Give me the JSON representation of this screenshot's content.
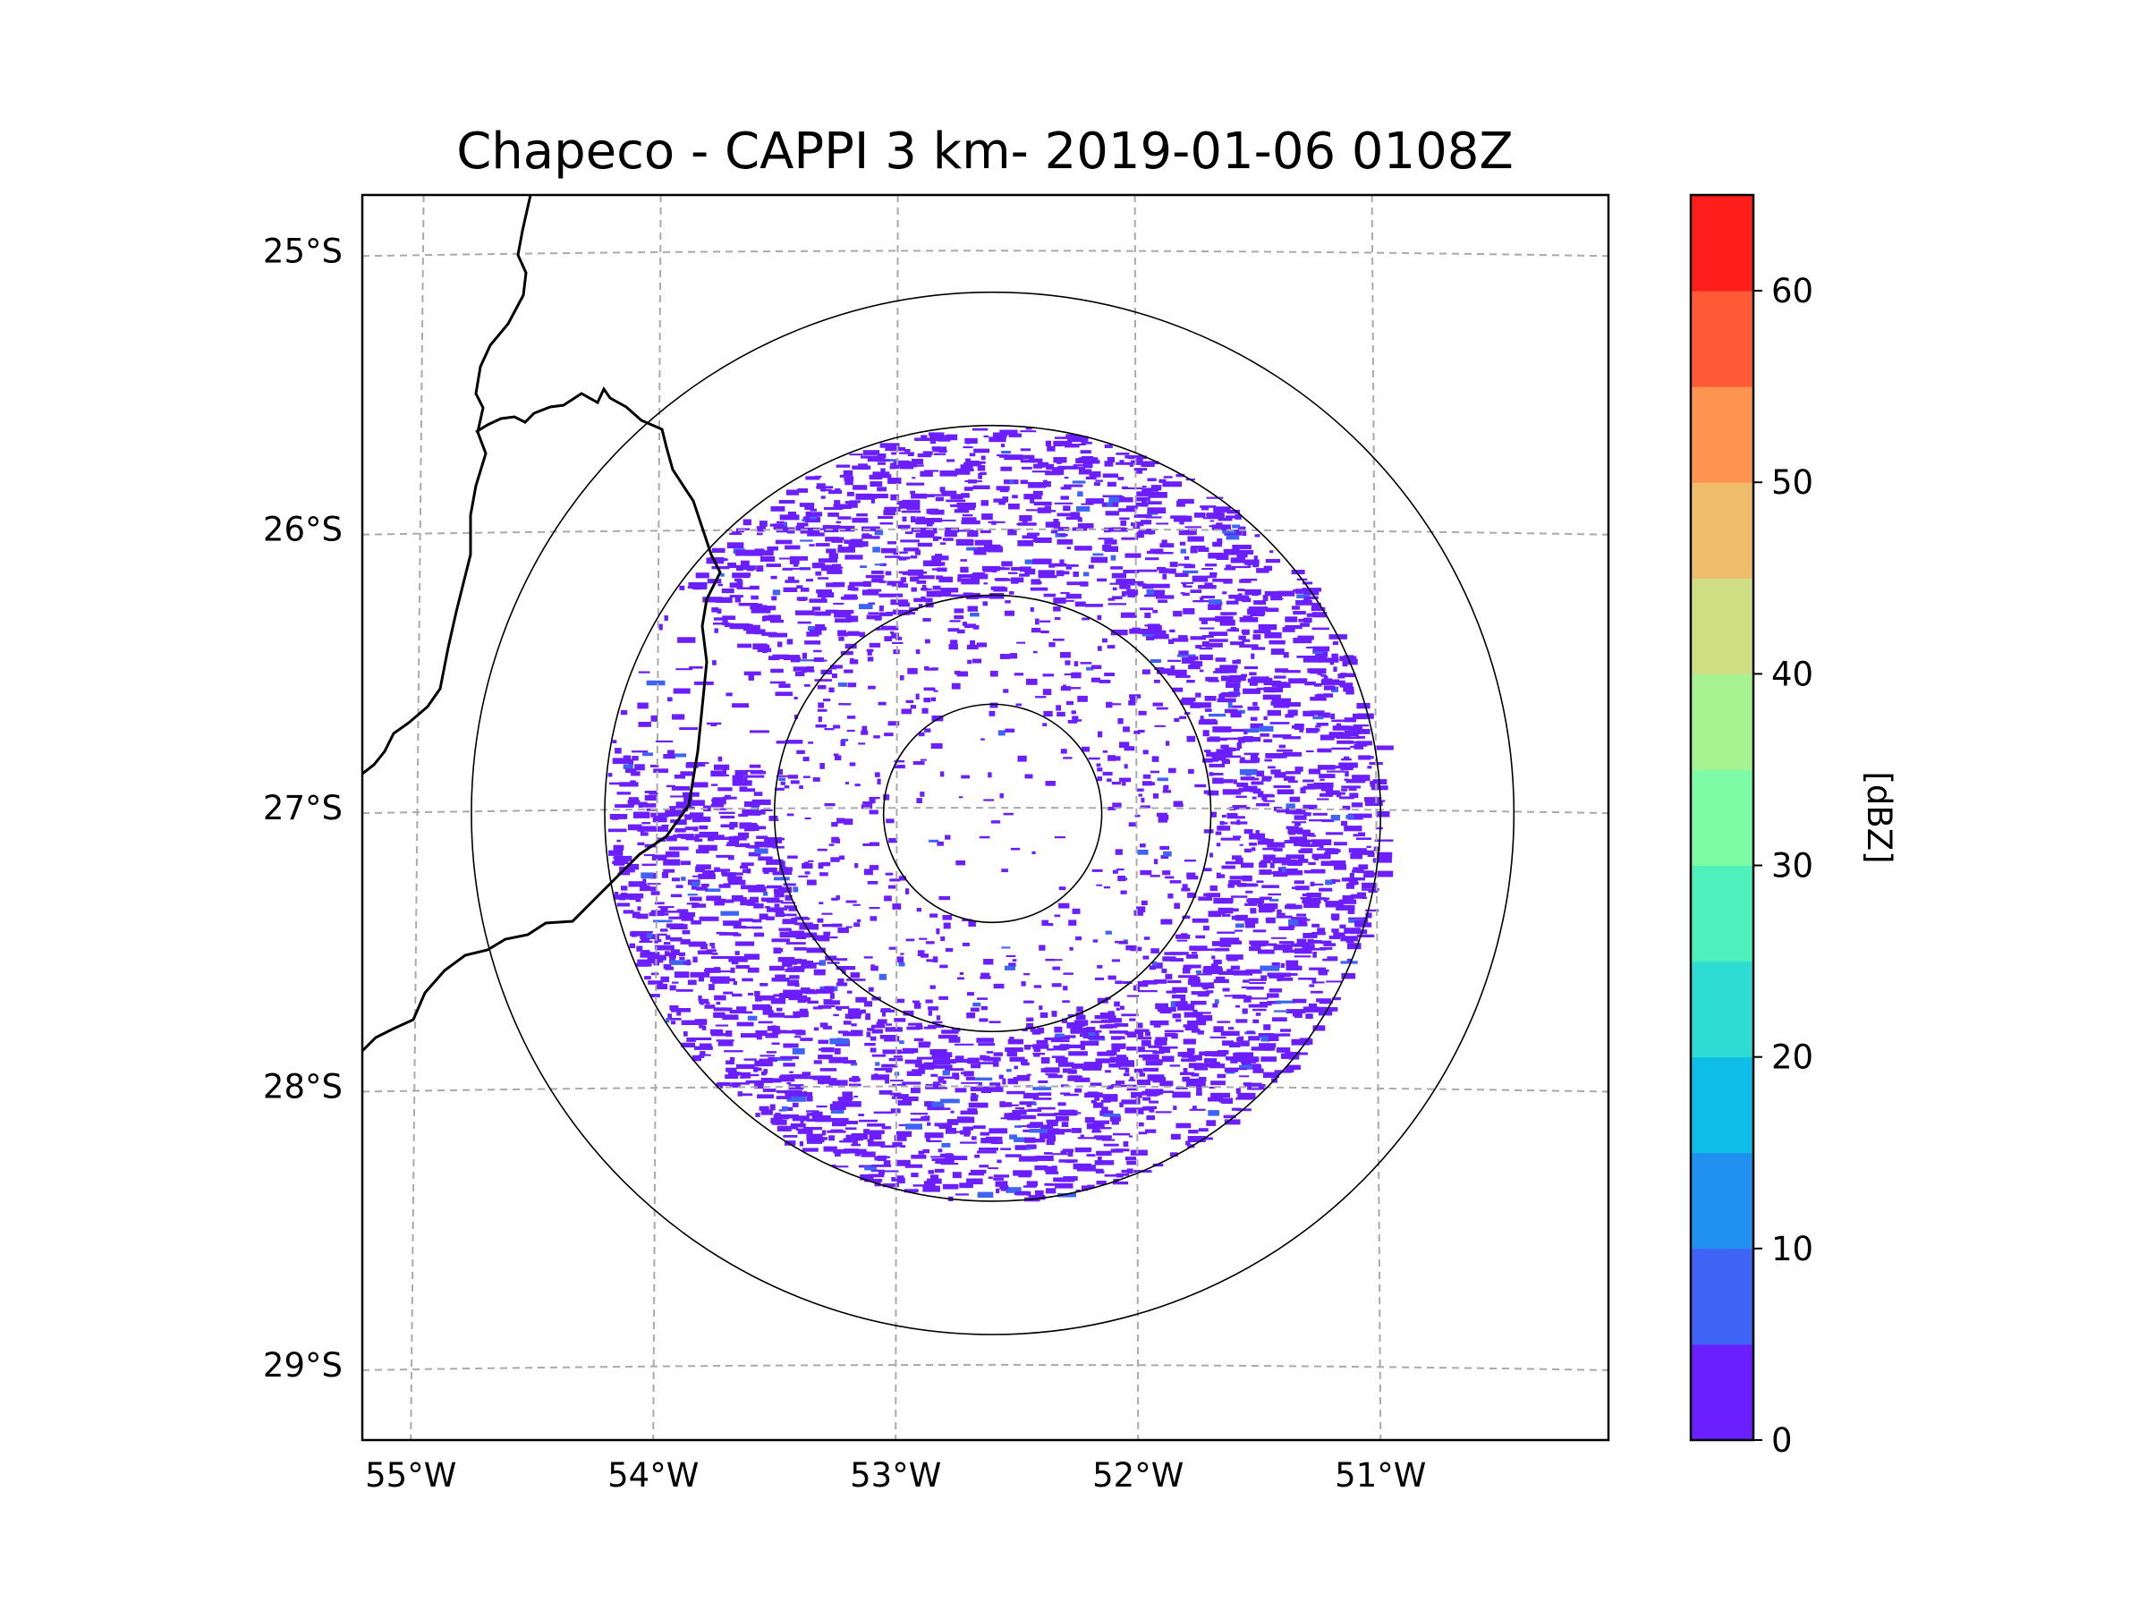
{
  "title": "Chapeco - CAPPI 3 km- 2019-01-06 0108Z",
  "map": {
    "lon_range": [
      -55.2,
      -50.06
    ],
    "lat_range": [
      -29.27,
      -24.8
    ],
    "lon_ticks": [
      {
        "value": -55,
        "label": "55°W"
      },
      {
        "value": -54,
        "label": "54°W"
      },
      {
        "value": -53,
        "label": "53°W"
      },
      {
        "value": -52,
        "label": "52°W"
      },
      {
        "value": -51,
        "label": "51°W"
      }
    ],
    "lat_ticks": [
      {
        "value": -25,
        "label": "25°S"
      },
      {
        "value": -26,
        "label": "26°S"
      },
      {
        "value": -27,
        "label": "27°S"
      },
      {
        "value": -28,
        "label": "28°S"
      },
      {
        "value": -29,
        "label": "29°S"
      }
    ],
    "radar_center": {
      "lon": -52.6,
      "lat": -27.02
    },
    "range_rings_deg": [
      0.45,
      0.9,
      1.6,
      2.15
    ]
  },
  "colorbar": {
    "label": "[dBZ]",
    "min": 0,
    "max": 65,
    "ticks": [
      {
        "value": 0,
        "label": "0"
      },
      {
        "value": 10,
        "label": "10"
      },
      {
        "value": 20,
        "label": "20"
      },
      {
        "value": 30,
        "label": "30"
      },
      {
        "value": 40,
        "label": "40"
      },
      {
        "value": 50,
        "label": "50"
      },
      {
        "value": 60,
        "label": "60"
      }
    ],
    "colors": [
      "#6b1fff",
      "#3e63f5",
      "#1f8ff0",
      "#0ebee6",
      "#2fdcd3",
      "#4ef0bb",
      "#7dfca5",
      "#a8f391",
      "#cfdd83",
      "#f0bd6c",
      "#ff9350",
      "#ff5a35",
      "#ff1e1a"
    ]
  },
  "echo_color": "#6b1fff",
  "echo_light_color": "#3e63f5"
}
